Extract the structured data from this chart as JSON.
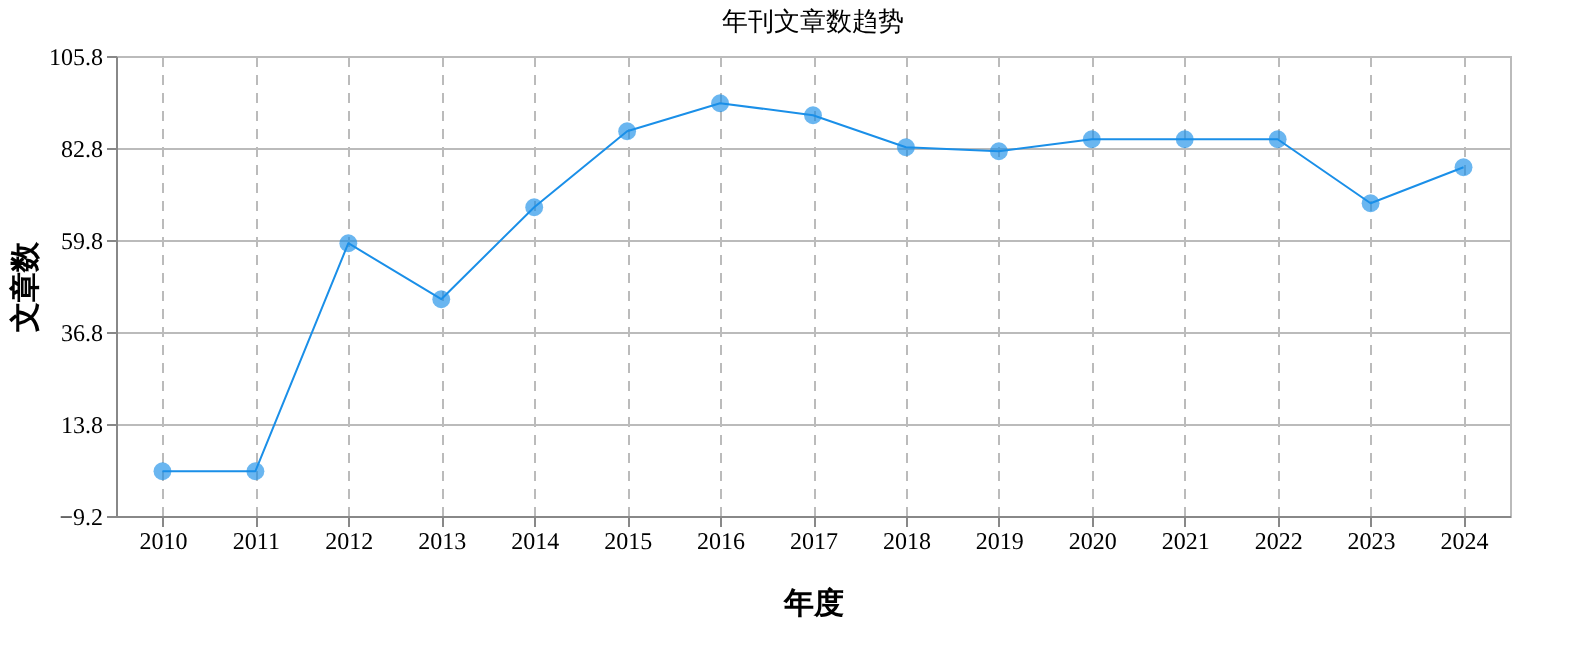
{
  "chart_data": {
    "type": "line",
    "title": "年刊文章数趋势",
    "xlabel": "年度",
    "ylabel": "文章数",
    "categories": [
      "2010",
      "2011",
      "2012",
      "2013",
      "2014",
      "2015",
      "2016",
      "2017",
      "2018",
      "2019",
      "2020",
      "2021",
      "2022",
      "2023",
      "2024"
    ],
    "series": [
      {
        "color": "#1a8fe8",
        "values": [
          2,
          2,
          59,
          45,
          68,
          87,
          94,
          91,
          83,
          82,
          85,
          85,
          85,
          69,
          78
        ]
      }
    ],
    "ylim": [
      -9.2,
      105.8
    ],
    "yticks": [
      -9.2,
      13.8,
      36.8,
      59.8,
      82.8,
      105.8
    ],
    "grid": true,
    "marker": "circle",
    "line_style": "solid"
  }
}
